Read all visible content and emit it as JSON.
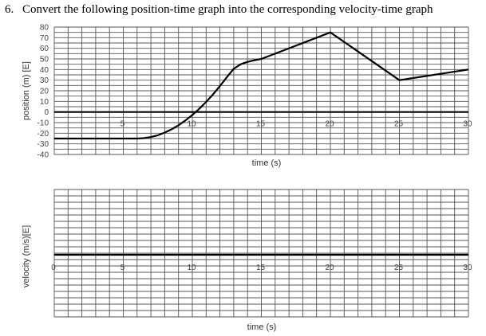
{
  "question": {
    "number": "6.",
    "text": "Convert the following position-time graph into the corresponding velocity-time graph"
  },
  "colors": {
    "grid": "#555555",
    "line": "#000000",
    "text": "#444444"
  },
  "chart_data": [
    {
      "type": "line",
      "title": "",
      "xlabel": "time (s)",
      "ylabel": "position (m) [E]",
      "xlim": [
        0,
        30
      ],
      "ylim": [
        -40,
        80
      ],
      "x_ticks": [
        0,
        5,
        10,
        15,
        20,
        25,
        30
      ],
      "x_tick_labels": [
        "",
        "5",
        "10",
        "15",
        "20",
        "25",
        "30"
      ],
      "y_ticks": [
        80,
        70,
        60,
        50,
        40,
        30,
        20,
        10,
        0,
        -10,
        -20,
        -30,
        -40
      ],
      "y_tick_labels": [
        "80",
        "70",
        "60",
        "50",
        "40",
        "30",
        "20",
        "10",
        "0",
        "-10",
        "-20",
        "-30",
        "-40"
      ],
      "grid": true,
      "series": [
        {
          "x": [
            0,
            6,
            6.5,
            7,
            7.5,
            8,
            8.5,
            9,
            9.5,
            10,
            10.5,
            11,
            11.5,
            12,
            12.5,
            13,
            13.5,
            14,
            14.5,
            15,
            20,
            25,
            30
          ],
          "y": [
            -25,
            -25,
            -24.6,
            -23.6,
            -21.9,
            -19.4,
            -16.3,
            -12.5,
            -8,
            -2.8,
            3,
            9.5,
            16.6,
            24.4,
            32.8,
            40.8,
            45,
            47.2,
            48.7,
            50,
            75,
            30,
            40
          ]
        }
      ]
    },
    {
      "type": "line",
      "title": "",
      "xlabel": "time (s)",
      "ylabel": "velocity (m/s)[E]",
      "xlim": [
        0,
        30
      ],
      "ylim": [
        -10,
        10
      ],
      "x_ticks": [
        0,
        5,
        10,
        15,
        20,
        25,
        30
      ],
      "x_tick_labels": [
        "0",
        "5",
        "10",
        "15",
        "20",
        "25",
        "30"
      ],
      "y_ticks": [],
      "y_tick_labels": [],
      "grid": true,
      "series": []
    }
  ]
}
